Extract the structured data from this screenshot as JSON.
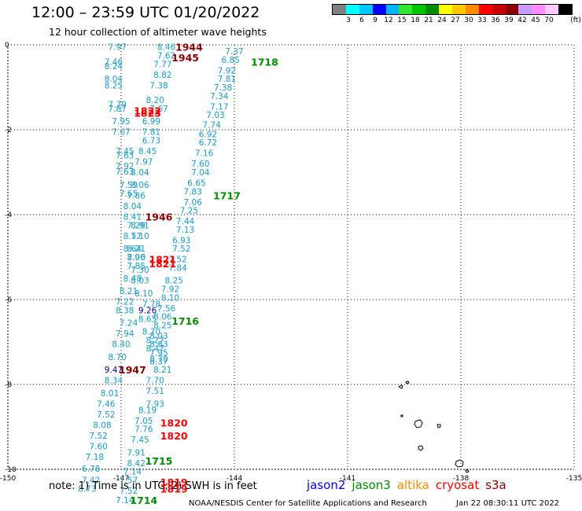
{
  "title": "12:00 – 23:59 UTC 01/20/2022",
  "subtitle": "12 hour collection of altimeter wave heights",
  "legend": {
    "unit": "(ft)",
    "colors": [
      "#808080",
      "#00ffff",
      "#00c8ff",
      "#0000ff",
      "#00b4ff",
      "#32e632",
      "#00c800",
      "#008c00",
      "#ffff00",
      "#ffc800",
      "#ff8c00",
      "#ff0000",
      "#c80000",
      "#8c0000",
      "#c89bff",
      "#ff8cff",
      "#ffc8ff",
      "#000000"
    ],
    "labels": [
      "3",
      "6",
      "9",
      "12",
      "15",
      "18",
      "21",
      "24",
      "27",
      "30",
      "33",
      "36",
      "39",
      "42",
      "45",
      "70"
    ]
  },
  "axes": {
    "lon_ticks": [
      "-150",
      "-147",
      "-144",
      "-141",
      "-138",
      "-135"
    ],
    "lat_ticks": [
      "0",
      "-2",
      "-4",
      "-6",
      "-8",
      "-10"
    ],
    "lon_range": [
      -150,
      -135
    ],
    "lat_range": [
      -10,
      0
    ]
  },
  "track_values": [
    {
      "lat": -0.05,
      "lon": -147.1,
      "v": "7.97"
    },
    {
      "lat": -0.4,
      "lon": -147.2,
      "v": "7.46"
    },
    {
      "lat": -0.5,
      "lon": -147.2,
      "v": "8.24"
    },
    {
      "lat": -0.8,
      "lon": -147.2,
      "v": "8.04"
    },
    {
      "lat": -0.95,
      "lon": -147.2,
      "v": "8.25"
    },
    {
      "lat": -1.4,
      "lon": -147.1,
      "v": "7.79"
    },
    {
      "lat": -1.5,
      "lon": -147.1,
      "v": "7.87"
    },
    {
      "lat": -1.8,
      "lon": -147.0,
      "v": "7.95"
    },
    {
      "lat": -2.05,
      "lon": -147.0,
      "v": "7.67"
    },
    {
      "lat": -2.5,
      "lon": -146.9,
      "v": "7.45"
    },
    {
      "lat": -2.6,
      "lon": -146.9,
      "v": "7.63"
    },
    {
      "lat": -2.85,
      "lon": -146.9,
      "v": "7.92"
    },
    {
      "lat": -2.98,
      "lon": -146.9,
      "v": "7.63"
    },
    {
      "lat": -3.3,
      "lon": -146.8,
      "v": "7.59"
    },
    {
      "lat": -3.5,
      "lon": -146.8,
      "v": "7.65"
    },
    {
      "lat": -4.25,
      "lon": -146.6,
      "v": "7.29"
    },
    {
      "lat": -4.5,
      "lon": -146.7,
      "v": "8.57"
    },
    {
      "lat": -4.8,
      "lon": -146.7,
      "v": "8.64"
    },
    {
      "lat": -5.0,
      "lon": -146.6,
      "v": "7.96"
    },
    {
      "lat": -5.2,
      "lon": -146.6,
      "v": "7.85"
    },
    {
      "lat": -5.5,
      "lon": -146.7,
      "v": "8.48"
    },
    {
      "lat": -5.8,
      "lon": -146.8,
      "v": "8.21"
    },
    {
      "lat": -6.05,
      "lon": -146.9,
      "v": "7.22"
    },
    {
      "lat": -6.25,
      "lon": -146.9,
      "v": "8.38"
    },
    {
      "lat": -6.55,
      "lon": -146.8,
      "v": "7.24"
    },
    {
      "lat": -6.8,
      "lon": -146.9,
      "v": "7.94"
    },
    {
      "lat": -7.05,
      "lon": -147.0,
      "v": "8.40"
    },
    {
      "lat": -7.35,
      "lon": -147.1,
      "v": "8.70"
    },
    {
      "lat": -7.65,
      "lon": -147.2,
      "v": "9.47",
      "navy": true
    },
    {
      "lat": -7.9,
      "lon": -147.2,
      "v": "8.34"
    },
    {
      "lat": -8.2,
      "lon": -147.3,
      "v": "8.01"
    },
    {
      "lat": -8.45,
      "lon": -147.4,
      "v": "7.46"
    },
    {
      "lat": -8.7,
      "lon": -147.4,
      "v": "7.52"
    },
    {
      "lat": -8.95,
      "lon": -147.5,
      "v": "8.08"
    },
    {
      "lat": -9.2,
      "lon": -147.6,
      "v": "7.52"
    },
    {
      "lat": -9.45,
      "lon": -147.6,
      "v": "7.60"
    },
    {
      "lat": -9.7,
      "lon": -147.7,
      "v": "7.18"
    },
    {
      "lat": -9.98,
      "lon": -147.8,
      "v": "6.78"
    },
    {
      "lat": -10.25,
      "lon": -147.8,
      "v": "7.42"
    },
    {
      "lat": -10.45,
      "lon": -147.9,
      "v": "8.73"
    },
    {
      "lat": -0.05,
      "lon": -145.8,
      "v": "8.46"
    },
    {
      "lat": -0.25,
      "lon": -145.8,
      "v": "7.62"
    },
    {
      "lat": -0.45,
      "lon": -145.9,
      "v": "7.77"
    },
    {
      "lat": -0.7,
      "lon": -145.9,
      "v": "8.82"
    },
    {
      "lat": -0.95,
      "lon": -146.0,
      "v": "7.38"
    },
    {
      "lat": -1.3,
      "lon": -146.1,
      "v": "8.20"
    },
    {
      "lat": -1.5,
      "lon": -146.0,
      "v": "7.67"
    },
    {
      "lat": -1.8,
      "lon": -146.2,
      "v": "6.99"
    },
    {
      "lat": -2.05,
      "lon": -146.2,
      "v": "7.81"
    },
    {
      "lat": -2.25,
      "lon": -146.2,
      "v": "6.73"
    },
    {
      "lat": -2.5,
      "lon": -146.3,
      "v": "8.45"
    },
    {
      "lat": -2.75,
      "lon": -146.4,
      "v": "7.97"
    },
    {
      "lat": -3.0,
      "lon": -146.5,
      "v": "8.04"
    },
    {
      "lat": -3.3,
      "lon": -146.5,
      "v": "8.06"
    },
    {
      "lat": -3.55,
      "lon": -146.6,
      "v": "7.86"
    },
    {
      "lat": -3.8,
      "lon": -146.7,
      "v": "8.04"
    },
    {
      "lat": -4.05,
      "lon": -146.7,
      "v": "8.41"
    },
    {
      "lat": -4.25,
      "lon": -146.5,
      "v": "8.91"
    },
    {
      "lat": -4.5,
      "lon": -146.5,
      "v": "7.10"
    },
    {
      "lat": -4.8,
      "lon": -146.6,
      "v": "8.21"
    },
    {
      "lat": -5.0,
      "lon": -146.6,
      "v": "8.00"
    },
    {
      "lat": -5.3,
      "lon": -146.5,
      "v": "7.30"
    },
    {
      "lat": -5.55,
      "lon": -146.5,
      "v": "8.03"
    },
    {
      "lat": -5.85,
      "lon": -146.4,
      "v": "8.10"
    },
    {
      "lat": -6.1,
      "lon": -146.2,
      "v": "7.78"
    },
    {
      "lat": -6.25,
      "lon": -146.3,
      "v": "9.26",
      "navy": true
    },
    {
      "lat": -6.45,
      "lon": -146.3,
      "v": "8.65"
    },
    {
      "lat": -6.75,
      "lon": -146.2,
      "v": "8.70"
    },
    {
      "lat": -6.95,
      "lon": -146.1,
      "v": "8.27"
    },
    {
      "lat": -7.15,
      "lon": -146.1,
      "v": "8.47"
    },
    {
      "lat": -7.4,
      "lon": -146.0,
      "v": "8.70"
    },
    {
      "lat": -7.65,
      "lon": -145.9,
      "v": "8.21"
    },
    {
      "lat": -7.9,
      "lon": -146.1,
      "v": "7.70"
    },
    {
      "lat": -8.15,
      "lon": -146.1,
      "v": "7.51"
    },
    {
      "lat": -8.45,
      "lon": -146.1,
      "v": "7.93"
    },
    {
      "lat": -8.6,
      "lon": -146.3,
      "v": "8.19"
    },
    {
      "lat": -8.85,
      "lon": -146.4,
      "v": "7.05"
    },
    {
      "lat": -9.05,
      "lon": -146.4,
      "v": "7.76"
    },
    {
      "lat": -9.3,
      "lon": -146.5,
      "v": "7.45"
    },
    {
      "lat": -9.6,
      "lon": -146.6,
      "v": "7.91"
    },
    {
      "lat": -9.85,
      "lon": -146.6,
      "v": "8.42"
    },
    {
      "lat": -10.05,
      "lon": -146.7,
      "v": "7.14"
    },
    {
      "lat": -10.25,
      "lon": -146.8,
      "v": "7.57"
    },
    {
      "lat": -10.5,
      "lon": -146.8,
      "v": "7.52"
    },
    {
      "lat": -10.72,
      "lon": -146.9,
      "v": "7.14"
    },
    {
      "lat": -0.15,
      "lon": -144.0,
      "v": "7.37"
    },
    {
      "lat": -0.35,
      "lon": -144.1,
      "v": "6.85"
    },
    {
      "lat": -0.6,
      "lon": -144.2,
      "v": "7.92"
    },
    {
      "lat": -0.8,
      "lon": -144.2,
      "v": "7.81"
    },
    {
      "lat": -1.0,
      "lon": -144.3,
      "v": "7.38"
    },
    {
      "lat": -1.2,
      "lon": -144.4,
      "v": "7.34"
    },
    {
      "lat": -1.45,
      "lon": -144.4,
      "v": "7.17"
    },
    {
      "lat": -1.65,
      "lon": -144.5,
      "v": "7.03"
    },
    {
      "lat": -1.88,
      "lon": -144.6,
      "v": "7.74"
    },
    {
      "lat": -2.1,
      "lon": -144.7,
      "v": "6.92"
    },
    {
      "lat": -2.3,
      "lon": -144.7,
      "v": "6.72"
    },
    {
      "lat": -2.55,
      "lon": -144.8,
      "v": "7.16"
    },
    {
      "lat": -2.8,
      "lon": -144.9,
      "v": "7.60"
    },
    {
      "lat": -3.0,
      "lon": -144.9,
      "v": "7.04"
    },
    {
      "lat": -3.25,
      "lon": -145.0,
      "v": "6.65"
    },
    {
      "lat": -3.45,
      "lon": -145.1,
      "v": "7.83"
    },
    {
      "lat": -3.7,
      "lon": -145.1,
      "v": "7.06"
    },
    {
      "lat": -3.9,
      "lon": -145.2,
      "v": "7.25"
    },
    {
      "lat": -4.15,
      "lon": -145.3,
      "v": "7.44"
    },
    {
      "lat": -4.35,
      "lon": -145.3,
      "v": "7.13"
    },
    {
      "lat": -4.6,
      "lon": -145.4,
      "v": "6.93"
    },
    {
      "lat": -4.8,
      "lon": -145.4,
      "v": "7.52"
    },
    {
      "lat": -5.05,
      "lon": -145.5,
      "v": "7.52"
    },
    {
      "lat": -5.25,
      "lon": -145.5,
      "v": "7.84"
    },
    {
      "lat": -5.55,
      "lon": -145.6,
      "v": "8.25"
    },
    {
      "lat": -5.75,
      "lon": -145.7,
      "v": "7.92"
    },
    {
      "lat": -5.95,
      "lon": -145.7,
      "v": "8.10"
    },
    {
      "lat": -6.2,
      "lon": -145.8,
      "v": "7.56"
    },
    {
      "lat": -6.4,
      "lon": -145.9,
      "v": "8.06"
    },
    {
      "lat": -6.6,
      "lon": -145.9,
      "v": "8.25"
    },
    {
      "lat": -6.85,
      "lon": -146.0,
      "v": "8.03"
    },
    {
      "lat": -7.05,
      "lon": -146.0,
      "v": "8.63"
    },
    {
      "lat": -7.25,
      "lon": -146.0,
      "v": "7.95"
    },
    {
      "lat": -7.45,
      "lon": -146.0,
      "v": "8.37"
    }
  ],
  "pass_labels": [
    {
      "lat": -0.05,
      "lon": -145.2,
      "text": "1944",
      "color": "#8b0000"
    },
    {
      "lat": -0.3,
      "lon": -145.3,
      "text": "1945",
      "color": "#8b0000"
    },
    {
      "lat": -0.4,
      "lon": -143.2,
      "text": "1718",
      "color": "#008c00"
    },
    {
      "lat": -1.55,
      "lon": -146.3,
      "text": "1822",
      "color": "#ff0000"
    },
    {
      "lat": -1.6,
      "lon": -146.3,
      "text": "1823",
      "color": "#ff0000"
    },
    {
      "lat": -3.55,
      "lon": -144.2,
      "text": "1717",
      "color": "#008c00"
    },
    {
      "lat": -4.05,
      "lon": -146.0,
      "text": "1946",
      "color": "#8b0000"
    },
    {
      "lat": -5.05,
      "lon": -145.9,
      "text": "1821",
      "color": "#ff0000"
    },
    {
      "lat": -5.15,
      "lon": -145.9,
      "text": "1821",
      "color": "#ff0000"
    },
    {
      "lat": -6.5,
      "lon": -145.3,
      "text": "1716",
      "color": "#008c00"
    },
    {
      "lat": -7.65,
      "lon": -146.7,
      "text": "1947",
      "color": "#8b0000"
    },
    {
      "lat": -8.9,
      "lon": -145.6,
      "text": "1820",
      "color": "#ff0000"
    },
    {
      "lat": -9.2,
      "lon": -145.6,
      "text": "1820",
      "color": "#ff0000"
    },
    {
      "lat": -9.8,
      "lon": -146.0,
      "text": "1715",
      "color": "#008c00"
    },
    {
      "lat": -10.3,
      "lon": -145.6,
      "text": "1819",
      "color": "#ff0000"
    },
    {
      "lat": -10.45,
      "lon": -145.6,
      "text": "1819",
      "color": "#ff0000"
    },
    {
      "lat": -10.72,
      "lon": -146.4,
      "text": "1714",
      "color": "#008c00"
    }
  ],
  "note": "note: 1) Time is in UTC; 2) SWH is in feet",
  "satellites": [
    {
      "name": "jason2",
      "color": "#0000ff"
    },
    {
      "name": "jason3",
      "color": "#008c00"
    },
    {
      "name": "altika",
      "color": "#ff8c00"
    },
    {
      "name": "cryosat",
      "color": "#ff0000"
    },
    {
      "name": "s3a",
      "color": "#8b0000"
    }
  ],
  "credit": "NOAA/NESDIS Center for Satellite Applications and Research",
  "timestamp": "Jan 22 08:30:11 UTC 2022"
}
